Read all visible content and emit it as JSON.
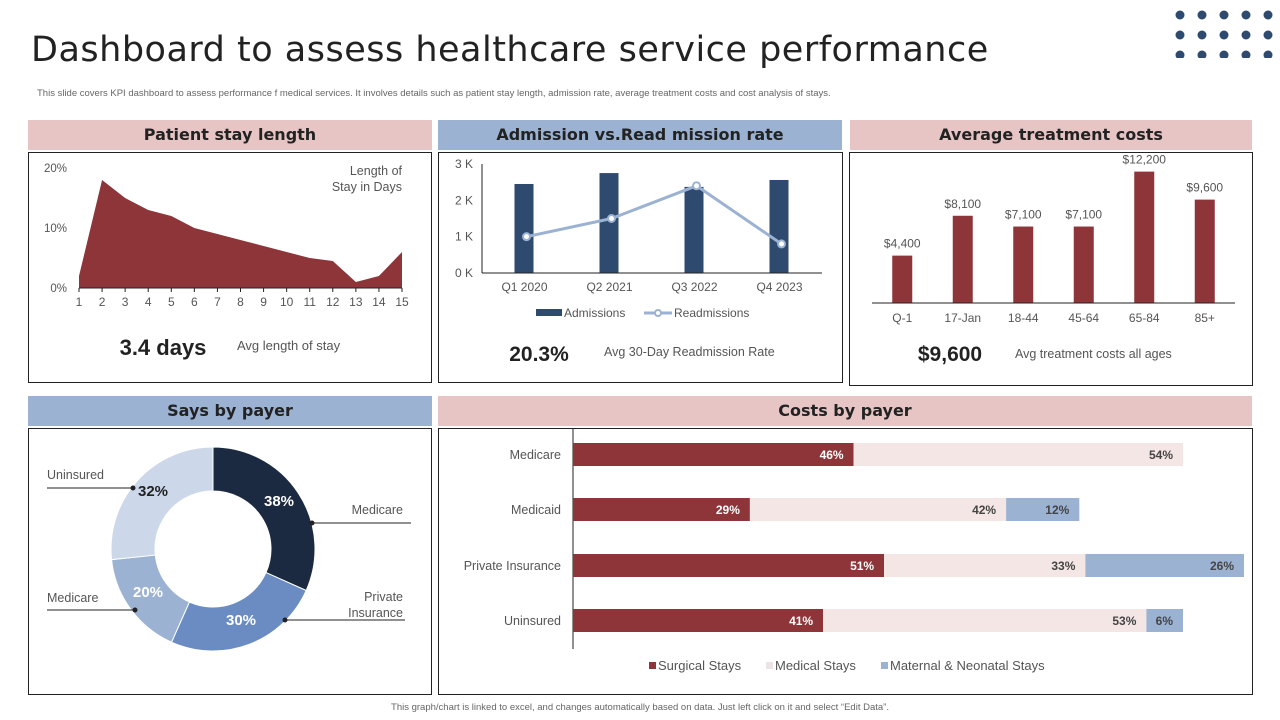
{
  "header": {
    "title": "Dashboard to assess healthcare service performance",
    "subtitle": "This slide covers KPI dashboard to assess performance f medical services. It involves details such as patient stay length, admission rate, average treatment costs and  cost analysis of stays."
  },
  "colors": {
    "maroon": "#8e3539",
    "navy": "#2e4a6e",
    "light_blue": "#9cb2d3",
    "pink_header": "#e8c5c5",
    "blue_header": "#9cb2d3",
    "pale_pink": "#f5e6e6",
    "dark_navy": "#1b2a40",
    "mid_blue": "#6a8cc3",
    "pale_blue": "#ccd8ea",
    "dot_color": "#2e4a6e"
  },
  "panels": {
    "stay_length": {
      "title": "Patient stay length",
      "kpi_value": "3.4 days",
      "kpi_label": "Avg length of stay"
    },
    "admission": {
      "title": "Admission vs.Read mission rate",
      "kpi_value": "20.3%",
      "kpi_label": "Avg 30-Day  Readmission Rate"
    },
    "treatment": {
      "title": "Average treatment costs",
      "kpi_value": "$9,600",
      "kpi_label": "Avg treatment costs all ages"
    },
    "stays_payer": {
      "title": "Says by payer"
    },
    "costs_payer": {
      "title": "Costs by payer"
    }
  },
  "footer": "This graph/chart is linked to excel, and changes automatically based on data. Just left click on it and select “Edit Data”.",
  "chart_data": [
    {
      "id": "stay_length",
      "type": "area",
      "title": "Length of Stay in Days",
      "annotation_lines": [
        "Length of",
        "Stay in Days"
      ],
      "x": [
        1,
        2,
        3,
        4,
        5,
        6,
        7,
        8,
        9,
        10,
        11,
        12,
        13,
        14,
        15
      ],
      "values": [
        2,
        18,
        15,
        13,
        12,
        10,
        9,
        8,
        7,
        6,
        5,
        4.5,
        1,
        2,
        6
      ],
      "ylim": [
        0,
        20
      ],
      "yticks": [
        0,
        10,
        20
      ],
      "ytick_labels": [
        "0%",
        "10%",
        "20%"
      ],
      "xlabel": "",
      "ylabel": "",
      "grid": false
    },
    {
      "id": "admission",
      "type": "bar",
      "categories": [
        "Q1 2020",
        "Q2 2021",
        "Q3 2022",
        "Q4 2023"
      ],
      "series": [
        {
          "name": "Admissions",
          "type": "bar",
          "values": [
            2450,
            2750,
            2370,
            2560
          ]
        },
        {
          "name": "Readmissions",
          "type": "line",
          "values": [
            1000,
            1500,
            2400,
            800
          ]
        }
      ],
      "ylim": [
        0,
        3000
      ],
      "yticks": [
        0,
        1000,
        2000,
        3000
      ],
      "ytick_labels": [
        "0 K",
        "1 K",
        "2 K",
        "3 K"
      ],
      "legend": "bottom",
      "grid": false
    },
    {
      "id": "treatment",
      "type": "bar",
      "categories": [
        "Q-1",
        "17-Jan",
        "18-44",
        "45-64",
        "65-84",
        "85+"
      ],
      "values": [
        4400,
        8100,
        7100,
        7100,
        12200,
        9600
      ],
      "data_labels": [
        "$4,400",
        "$8,100",
        "$7,100",
        "$7,100",
        "$12,200",
        "$9,600"
      ],
      "ylim": [
        0,
        13000
      ],
      "grid": false
    },
    {
      "id": "stays_payer",
      "type": "pie",
      "donut": true,
      "slices": [
        {
          "label": "Medicare",
          "value": 38,
          "display": "38%",
          "color": "#1b2a40"
        },
        {
          "label": "Private Insurance",
          "value": 30,
          "display": "30%",
          "color": "#6a8cc3"
        },
        {
          "label": "Medicare",
          "value": 20,
          "display": "20%",
          "color": "#9cb2d3"
        },
        {
          "label": "Uninsured",
          "value": 32,
          "display": "32%",
          "color": "#ccd8ea"
        }
      ]
    },
    {
      "id": "costs_payer",
      "type": "bar",
      "orientation": "horizontal",
      "stacked": true,
      "categories": [
        "Medicare",
        "Medicaid",
        "Private Insurance",
        "Uninsured"
      ],
      "series": [
        {
          "name": "Surgical Stays",
          "values": [
            46,
            29,
            51,
            41
          ],
          "color": "#8e3539"
        },
        {
          "name": "Medical Stays",
          "values": [
            54,
            42,
            33,
            53
          ],
          "color": "#f5e6e6"
        },
        {
          "name": "Maternal & Neonatal Stays",
          "values": [
            0,
            12,
            26,
            6
          ],
          "color": "#9cb2d3"
        }
      ],
      "legend": "bottom",
      "xlim": [
        0,
        115
      ]
    }
  ]
}
